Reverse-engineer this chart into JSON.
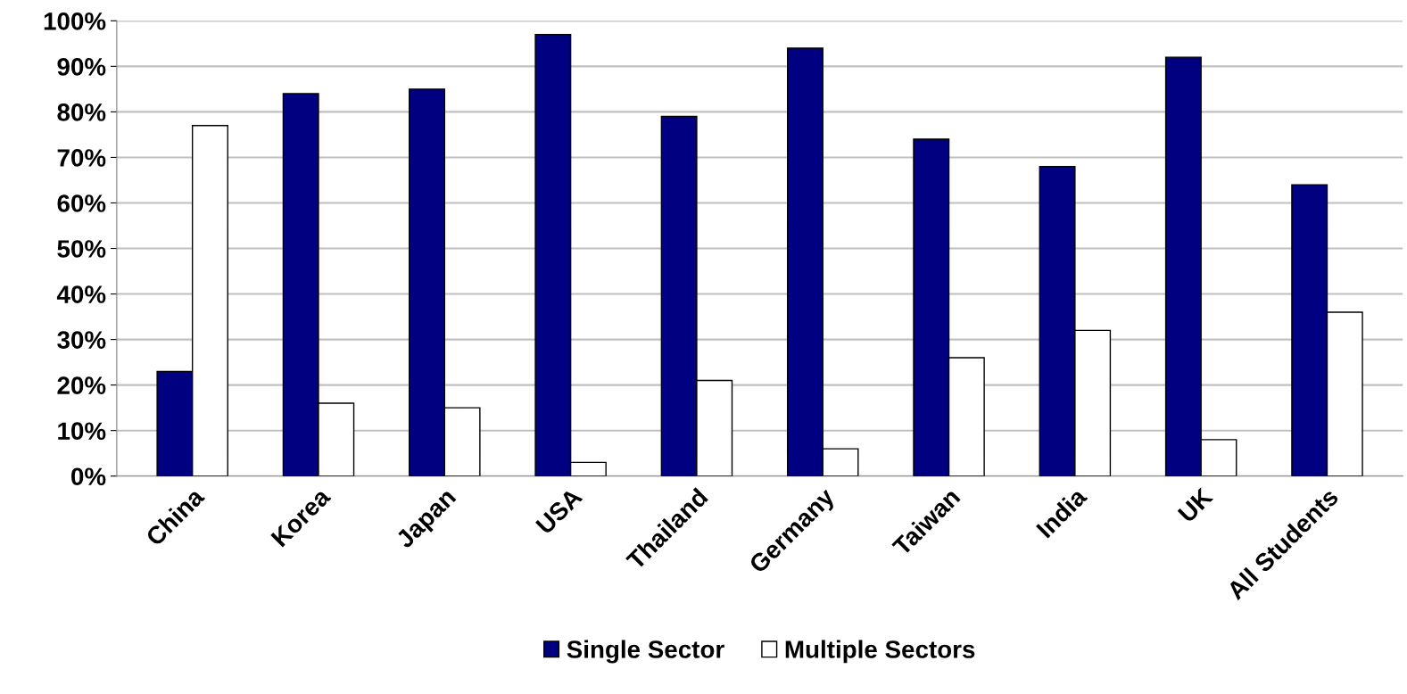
{
  "chart_data": {
    "type": "bar",
    "categories": [
      "China",
      "Korea",
      "Japan",
      "USA",
      "Thailand",
      "Germany",
      "Taiwan",
      "India",
      "UK",
      "All Students"
    ],
    "series": [
      {
        "name": "Single Sector",
        "color": "#000080",
        "values": [
          23,
          84,
          85,
          97,
          79,
          94,
          74,
          68,
          92,
          64
        ]
      },
      {
        "name": "Multiple Sectors",
        "color": "#ffffff",
        "values": [
          77,
          16,
          15,
          3,
          21,
          6,
          26,
          32,
          8,
          36
        ]
      }
    ],
    "ylim": [
      0,
      100
    ],
    "yticks": [
      {
        "value": 0,
        "label": "0%"
      },
      {
        "value": 10,
        "label": "10%"
      },
      {
        "value": 20,
        "label": "20%"
      },
      {
        "value": 30,
        "label": "30%"
      },
      {
        "value": 40,
        "label": "40%"
      },
      {
        "value": 50,
        "label": "50%"
      },
      {
        "value": 60,
        "label": "60%"
      },
      {
        "value": 70,
        "label": "70%"
      },
      {
        "value": 80,
        "label": "80%"
      },
      {
        "value": 90,
        "label": "90%"
      },
      {
        "value": 100,
        "label": "100%"
      }
    ],
    "grid": "y",
    "legend": "bottom"
  }
}
